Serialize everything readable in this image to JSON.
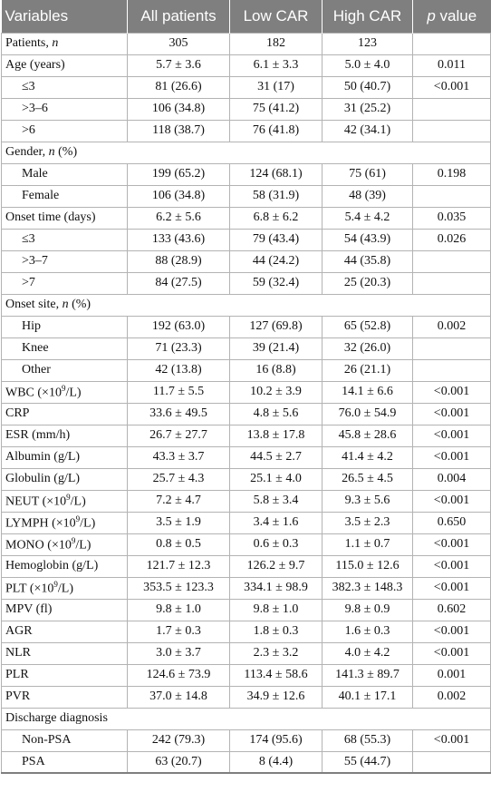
{
  "header": {
    "variables": "Variables",
    "all": "All patients",
    "low": "Low CAR",
    "high": "High CAR",
    "p_italic": "p",
    "p_rest": " value"
  },
  "rows": [
    {
      "label": "Patients, ",
      "label_italic": "n",
      "all": "305",
      "low": "182",
      "high": "123",
      "p": ""
    },
    {
      "label": "Age (years)",
      "all": "5.7 ± 3.6",
      "low": "6.1 ± 3.3",
      "high": "5.0 ± 4.0",
      "p": "0.011"
    },
    {
      "label": "≤3",
      "sub": true,
      "all": "81 (26.6)",
      "low": "31 (17)",
      "high": "50 (40.7)",
      "p": "<0.001"
    },
    {
      "label": ">3–6",
      "sub": true,
      "all": "106 (34.8)",
      "low": "75 (41.2)",
      "high": "31 (25.2)",
      "p": ""
    },
    {
      "label": ">6",
      "sub": true,
      "all": "118 (38.7)",
      "low": "76 (41.8)",
      "high": "42 (34.1)",
      "p": ""
    },
    {
      "label": "Gender, ",
      "label_italic": "n",
      "label_after": " (%)",
      "section": true
    },
    {
      "label": "Male",
      "sub": true,
      "all": "199 (65.2)",
      "low": "124 (68.1)",
      "high": "75 (61)",
      "p": "0.198"
    },
    {
      "label": "Female",
      "sub": true,
      "all": "106 (34.8)",
      "low": "58 (31.9)",
      "high": "48 (39)",
      "p": ""
    },
    {
      "label": "Onset time (days)",
      "all": "6.2 ± 5.6",
      "low": "6.8 ± 6.2",
      "high": "5.4 ± 4.2",
      "p": "0.035"
    },
    {
      "label": "≤3",
      "sub": true,
      "all": "133 (43.6)",
      "low": "79 (43.4)",
      "high": "54 (43.9)",
      "p": "0.026"
    },
    {
      "label": ">3–7",
      "sub": true,
      "all": "88 (28.9)",
      "low": "44 (24.2)",
      "high": "44 (35.8)",
      "p": ""
    },
    {
      "label": ">7",
      "sub": true,
      "all": "84 (27.5)",
      "low": "59 (32.4)",
      "high": "25 (20.3)",
      "p": ""
    },
    {
      "label": "Onset site, ",
      "label_italic": "n",
      "label_after": " (%)",
      "section": true
    },
    {
      "label": "Hip",
      "sub": true,
      "all": "192 (63.0)",
      "low": "127 (69.8)",
      "high": "65 (52.8)",
      "p": "0.002"
    },
    {
      "label": "Knee",
      "sub": true,
      "all": "71 (23.3)",
      "low": "39 (21.4)",
      "high": "32 (26.0)",
      "p": ""
    },
    {
      "label": "Other",
      "sub": true,
      "all": "42 (13.8)",
      "low": "16 (8.8)",
      "high": "26 (21.1)",
      "p": ""
    },
    {
      "label": "WBC (×10",
      "label_sup": "9",
      "label_after": "/L)",
      "all": "11.7 ± 5.5",
      "low": "10.2 ± 3.9",
      "high": "14.1 ± 6.6",
      "p": "<0.001"
    },
    {
      "label": "CRP",
      "all": "33.6 ± 49.5",
      "low": "4.8 ± 5.6",
      "high": "76.0 ± 54.9",
      "p": "<0.001"
    },
    {
      "label": "ESR (mm/h)",
      "all": "26.7 ± 27.7",
      "low": "13.8 ± 17.8",
      "high": "45.8 ± 28.6",
      "p": "<0.001"
    },
    {
      "label": "Albumin (g/L)",
      "all": "43.3 ± 3.7",
      "low": "44.5 ± 2.7",
      "high": "41.4 ± 4.2",
      "p": "<0.001"
    },
    {
      "label": "Globulin (g/L)",
      "all": "25.7 ± 4.3",
      "low": "25.1 ± 4.0",
      "high": "26.5 ± 4.5",
      "p": "0.004"
    },
    {
      "label": "NEUT (×10",
      "label_sup": "9",
      "label_after": "/L)",
      "all": "7.2 ± 4.7",
      "low": "5.8 ± 3.4",
      "high": "9.3 ± 5.6",
      "p": "<0.001"
    },
    {
      "label": "LYMPH (×10",
      "label_sup": "9",
      "label_after": "/L)",
      "all": "3.5 ± 1.9",
      "low": "3.4 ± 1.6",
      "high": "3.5 ± 2.3",
      "p": "0.650"
    },
    {
      "label": "MONO (×10",
      "label_sup": "9",
      "label_after": "/L)",
      "all": "0.8 ± 0.5",
      "low": "0.6 ± 0.3",
      "high": "1.1 ± 0.7",
      "p": "<0.001"
    },
    {
      "label": "Hemoglobin (g/L)",
      "all": "121.7 ± 12.3",
      "low": "126.2 ± 9.7",
      "high": "115.0 ± 12.6",
      "p": "<0.001"
    },
    {
      "label": "PLT (×10",
      "label_sup": "9",
      "label_after": "/L)",
      "all": "353.5 ± 123.3",
      "low": "334.1 ± 98.9",
      "high": "382.3 ± 148.3",
      "p": "<0.001"
    },
    {
      "label": "MPV (fl)",
      "all": "9.8 ± 1.0",
      "low": "9.8 ± 1.0",
      "high": "9.8 ± 0.9",
      "p": "0.602"
    },
    {
      "label": "AGR",
      "all": "1.7 ± 0.3",
      "low": "1.8 ± 0.3",
      "high": "1.6 ± 0.3",
      "p": "<0.001"
    },
    {
      "label": "NLR",
      "all": "3.0 ± 3.7",
      "low": "2.3 ± 3.2",
      "high": "4.0 ± 4.2",
      "p": "<0.001"
    },
    {
      "label": "PLR",
      "all": "124.6 ± 73.9",
      "low": "113.4 ± 58.6",
      "high": "141.3 ± 89.7",
      "p": "0.001"
    },
    {
      "label": "PVR",
      "all": "37.0 ± 14.8",
      "low": "34.9 ± 12.6",
      "high": "40.1 ± 17.1",
      "p": "0.002"
    },
    {
      "label": "Discharge diagnosis",
      "section": true
    },
    {
      "label": "Non-PSA",
      "sub": true,
      "all": "242 (79.3)",
      "low": "174 (95.6)",
      "high": "68 (55.3)",
      "p": "<0.001"
    },
    {
      "label": "PSA",
      "sub": true,
      "all": "63 (20.7)",
      "low": "8 (4.4)",
      "high": "55 (44.7)",
      "p": ""
    }
  ]
}
